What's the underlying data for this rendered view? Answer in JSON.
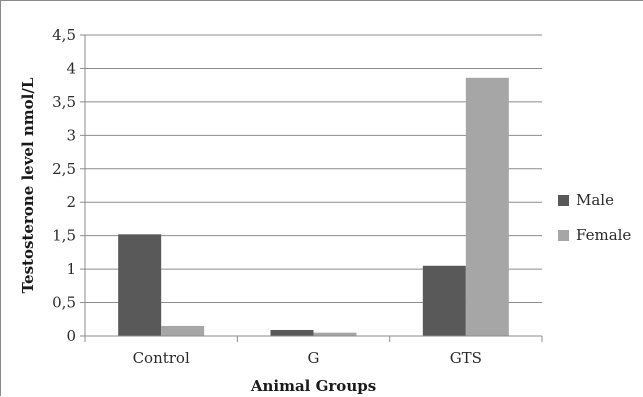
{
  "chart_data": {
    "type": "bar",
    "categories": [
      "Control",
      "G",
      "GTS"
    ],
    "series": [
      {
        "name": "Male",
        "color": "#595959",
        "values": [
          1.52,
          0.09,
          1.05
        ]
      },
      {
        "name": "Female",
        "color": "#a6a6a6",
        "values": [
          0.15,
          0.05,
          3.86
        ]
      }
    ],
    "title": "",
    "xlabel": "Animal Groups",
    "ylabel": "Testosterone level nmol/L",
    "ylim": [
      0,
      4.5
    ],
    "yticks": [
      0,
      0.5,
      1,
      1.5,
      2,
      2.5,
      3,
      3.5,
      4,
      4.5
    ],
    "ytick_labels": [
      "0",
      "0,5",
      "1",
      "1,5",
      "2",
      "2,5",
      "3",
      "3,5",
      "4",
      "4,5"
    ],
    "grid": true,
    "legend_position": "right"
  }
}
